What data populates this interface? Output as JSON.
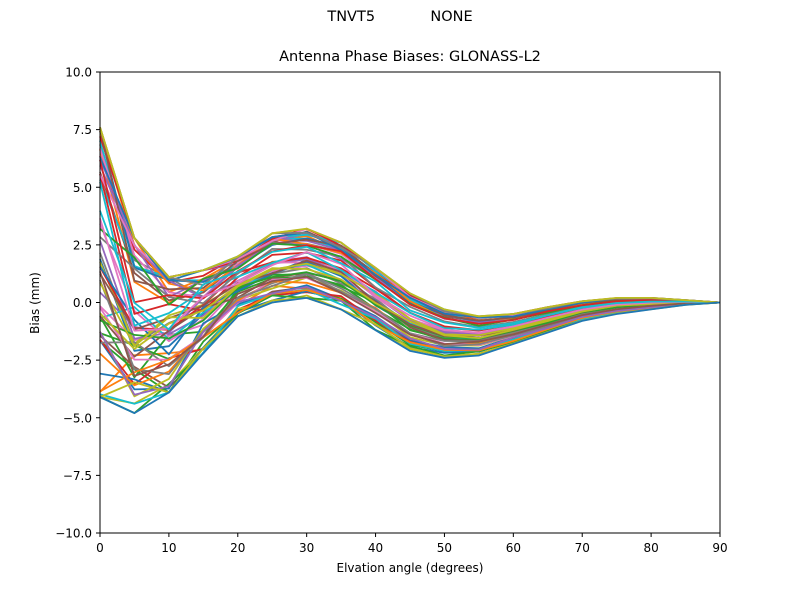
{
  "figure": {
    "suptitle_left": "TNVT5",
    "suptitle_right": "NONE",
    "title": "Antenna Phase Biases: GLONASS-L2",
    "xlabel": "Elvation angle (degrees)",
    "ylabel": "Bias (mm)"
  },
  "axes": {
    "x_ticks": [
      "0",
      "10",
      "20",
      "30",
      "40",
      "50",
      "60",
      "70",
      "80",
      "90"
    ],
    "y_ticks": [
      "10.0",
      "7.5",
      "5.0",
      "2.5",
      "0.0",
      "−2.5",
      "−5.0",
      "−7.5",
      "−10.0"
    ]
  },
  "colors": [
    "#1f77b4",
    "#ff7f0e",
    "#2ca02c",
    "#d62728",
    "#9467bd",
    "#8c564b",
    "#e377c2",
    "#7f7f7f",
    "#bcbd22",
    "#17becf"
  ],
  "chart_data": {
    "type": "line",
    "title": "Antenna Phase Biases: GLONASS-L2",
    "suptitle": "TNVT5          NONE",
    "xlabel": "Elvation angle (degrees)",
    "ylabel": "Bias (mm)",
    "xlim": [
      0,
      90
    ],
    "ylim": [
      -10,
      10
    ],
    "grid": false,
    "legend": false,
    "x": [
      0,
      5,
      10,
      15,
      20,
      25,
      30,
      35,
      40,
      45,
      50,
      55,
      60,
      65,
      70,
      75,
      80,
      85,
      90
    ],
    "envelope": {
      "upper": [
        7.6,
        2.8,
        1.1,
        1.4,
        2.0,
        3.0,
        3.2,
        2.6,
        1.5,
        0.4,
        -0.3,
        -0.6,
        -0.5,
        -0.2,
        0.05,
        0.2,
        0.2,
        0.1,
        0.0
      ],
      "lower": [
        -4.1,
        -4.8,
        -3.9,
        -2.2,
        -0.6,
        0.0,
        0.2,
        -0.3,
        -1.2,
        -2.1,
        -2.4,
        -2.3,
        -1.8,
        -1.3,
        -0.8,
        -0.5,
        -0.3,
        -0.1,
        0.0
      ]
    },
    "series_count": 60,
    "series_note": "Approx. 60 curves cycling through matplotlib tab10 colors, spanning the envelope above; first values at 0° range from -4.1 to 7.6 mm."
  }
}
